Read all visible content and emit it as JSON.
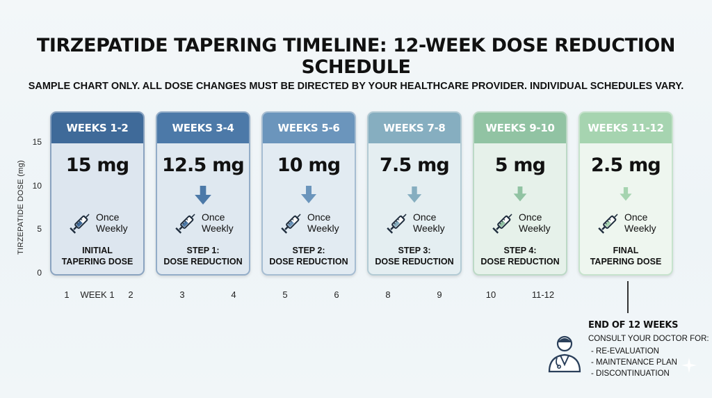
{
  "title": "TIRZEPATIDE TAPERING TIMELINE: 12-WEEK DOSE REDUCTION SCHEDULE",
  "disclaimer": "SAMPLE CHART ONLY. ALL DOSE CHANGES MUST BE DIRECTED BY YOUR HEALTHCARE PROVIDER. INDIVIDUAL SCHEDULES VARY.",
  "chart_data": {
    "type": "table",
    "title": "TIRZEPATIDE TAPERING TIMELINE: 12-WEEK DOSE REDUCTION SCHEDULE",
    "ylabel": "TIRZEPATIDE DOSE (mg)",
    "ylim": [
      0,
      15
    ],
    "y_ticks": [
      "15",
      "10",
      "5",
      "0"
    ],
    "unit": "mg",
    "categories": [
      "WEEKS 1-2",
      "WEEKS 3-4",
      "WEEKS 5-6",
      "WEEKS 7-8",
      "WEEKS 9-10",
      "WEEKS 11-12"
    ],
    "values": [
      15,
      12.5,
      10,
      7.5,
      5,
      2.5
    ],
    "x_labels": [
      "1",
      "WEEK 1",
      "2",
      "3",
      "4",
      "5",
      "6",
      "8",
      "9",
      "10",
      "11-12"
    ],
    "cards": [
      {
        "period": "WEEKS 1-2",
        "dose_label": "15 mg",
        "dose": 15,
        "frequency_line1": "Once",
        "frequency_line2": "Weekly",
        "step_line1": "INITIAL",
        "step_line2": "TAPERING DOSE",
        "color": "#3f6a99",
        "body_color": "#dde6ef",
        "border": "#8aa3c0",
        "show_arrow": false
      },
      {
        "period": "WEEKS 3-4",
        "dose_label": "12.5 mg",
        "dose": 12.5,
        "frequency_line1": "Once",
        "frequency_line2": "Weekly",
        "step_line1": "STEP 1:",
        "step_line2": "DOSE REDUCTION",
        "color": "#4c79a8",
        "body_color": "#dfe8f0",
        "border": "#93adc8",
        "show_arrow": true
      },
      {
        "period": "WEEKS 5-6",
        "dose_label": "10 mg",
        "dose": 10,
        "frequency_line1": "Once",
        "frequency_line2": "Weekly",
        "step_line1": "STEP 2:",
        "step_line2": "DOSE REDUCTION",
        "color": "#6b95bc",
        "body_color": "#e2ebf2",
        "border": "#a6bdd2",
        "show_arrow": true
      },
      {
        "period": "WEEKS 7-8",
        "dose_label": "7.5 mg",
        "dose": 7.5,
        "frequency_line1": "Once",
        "frequency_line2": "Weekly",
        "step_line1": "STEP 3:",
        "step_line2": "DOSE REDUCTION",
        "color": "#86aec0",
        "body_color": "#e4eef1",
        "border": "#b3cbd4",
        "show_arrow": true
      },
      {
        "period": "WEEKS 9-10",
        "dose_label": "5 mg",
        "dose": 5,
        "frequency_line1": "Once",
        "frequency_line2": "Weekly",
        "step_line1": "STEP 4:",
        "step_line2": "DOSE REDUCTION",
        "color": "#91c3a3",
        "body_color": "#e6f1ea",
        "border": "#bcd9c6",
        "show_arrow": true
      },
      {
        "period": "WEEKS 11-12",
        "dose_label": "2.5 mg",
        "dose": 2.5,
        "frequency_line1": "Once",
        "frequency_line2": "Weekly",
        "step_line1": "FINAL",
        "step_line2": "TAPERING DOSE",
        "color": "#a6d4b0",
        "body_color": "#eef6ef",
        "border": "#c7e3cd",
        "show_arrow": true
      }
    ]
  },
  "end_note": {
    "title": "END OF 12 WEEKS",
    "subtitle": "CONSULT YOUR DOCTOR FOR:",
    "items": [
      "- RE-EVALUATION",
      "- MAINTENANCE PLAN",
      "- DISCONTINUATION"
    ]
  },
  "icons": {
    "syringe": "syringe-icon",
    "arrow": "arrow-down-icon",
    "doctor": "doctor-icon"
  }
}
